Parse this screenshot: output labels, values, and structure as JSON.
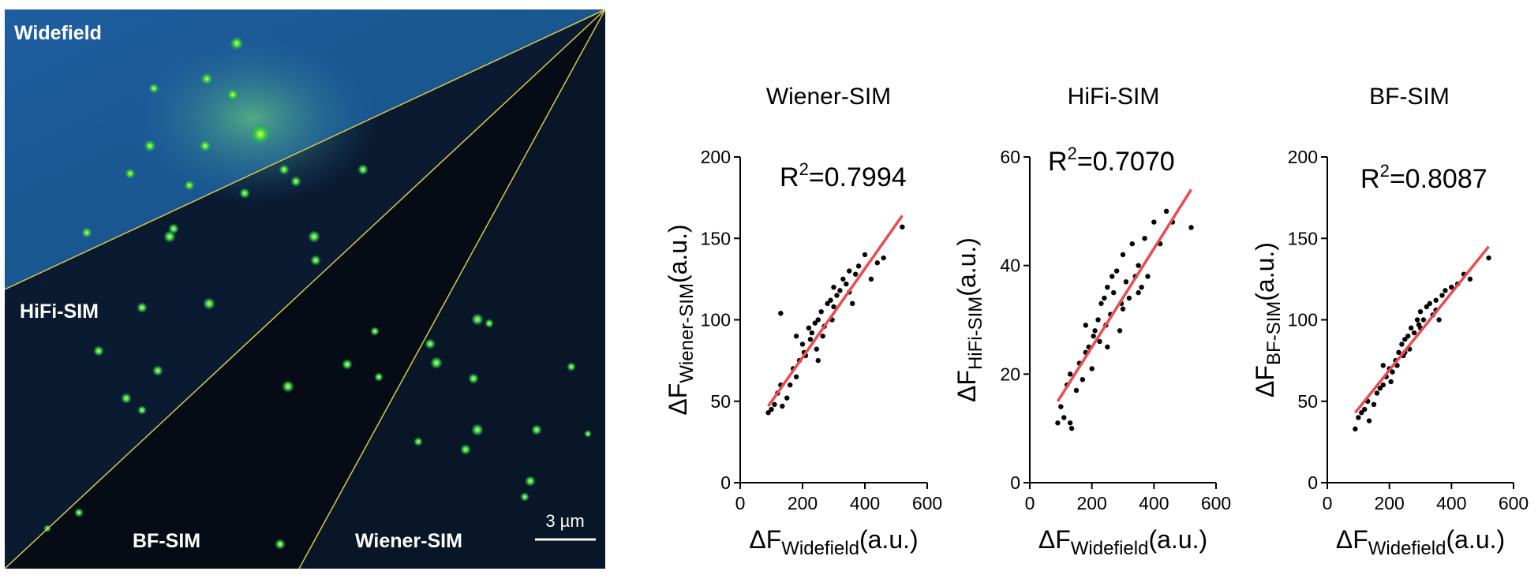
{
  "image_panel": {
    "labels": [
      "Widefield",
      "HiFi-SIM",
      "BF-SIM",
      "Wiener-SIM"
    ],
    "scale_bar": "3 µm"
  },
  "chart_data": [
    {
      "type": "scatter",
      "title": "Wiener-SIM",
      "annotation": {
        "base": "R",
        "sup": "2",
        "text": "=0.7994"
      },
      "ylabel": {
        "main": "ΔF",
        "sub": "Wiener-SIM",
        "unit": "(a.u.)"
      },
      "xlabel": {
        "main": "ΔF",
        "sub": "Widefield",
        "unit": "(a.u.)"
      },
      "x": [
        90,
        100,
        110,
        120,
        130,
        135,
        150,
        160,
        170,
        180,
        190,
        200,
        205,
        210,
        220,
        225,
        230,
        240,
        245,
        250,
        260,
        265,
        270,
        280,
        290,
        295,
        300,
        310,
        320,
        330,
        340,
        350,
        360,
        370,
        380,
        400,
        420,
        440,
        460,
        520,
        130,
        250,
        300,
        180,
        350
      ],
      "y": [
        43,
        45,
        48,
        55,
        104,
        47,
        52,
        60,
        70,
        65,
        75,
        85,
        80,
        78,
        95,
        88,
        92,
        98,
        82,
        100,
        105,
        90,
        96,
        110,
        112,
        100,
        120,
        115,
        118,
        125,
        122,
        130,
        110,
        128,
        133,
        140,
        125,
        135,
        138,
        157,
        60,
        75,
        108,
        90,
        117
      ],
      "fit": {
        "x": [
          90,
          520
        ],
        "y": [
          47,
          164
        ]
      },
      "point_color": "#000000",
      "fit_color": "#ec4a4f",
      "xlim": [
        0,
        600
      ],
      "xticks": [
        0,
        200,
        400,
        600
      ],
      "ylim": [
        0,
        200
      ],
      "yticks": [
        0,
        50,
        100,
        150,
        200
      ]
    },
    {
      "type": "scatter",
      "title": "HiFi-SIM",
      "annotation": {
        "base": "R",
        "sup": "2",
        "text": "=0.7070"
      },
      "ylabel": {
        "main": "ΔF",
        "sub": "HiFi-SIM",
        "unit": "(a.u.)"
      },
      "xlabel": {
        "main": "ΔF",
        "sub": "Widefield",
        "unit": "(a.u.)"
      },
      "x": [
        90,
        100,
        110,
        120,
        130,
        135,
        150,
        160,
        170,
        180,
        190,
        200,
        205,
        210,
        220,
        225,
        230,
        240,
        245,
        250,
        260,
        265,
        270,
        280,
        290,
        295,
        300,
        310,
        320,
        330,
        340,
        350,
        360,
        370,
        380,
        400,
        420,
        440,
        460,
        520,
        130,
        250,
        300,
        180,
        350
      ],
      "y": [
        11,
        14,
        12,
        18,
        20,
        10,
        17,
        22,
        19,
        24,
        25,
        21,
        27,
        28,
        30,
        26,
        33,
        34,
        29,
        36,
        31,
        38,
        35,
        39,
        28,
        33,
        42,
        37,
        34,
        44,
        38,
        40,
        36,
        45,
        38,
        48,
        44,
        50,
        48,
        47,
        11,
        25,
        32,
        29,
        35
      ],
      "fit": {
        "x": [
          90,
          520
        ],
        "y": [
          15,
          54
        ]
      },
      "point_color": "#000000",
      "fit_color": "#ec4a4f",
      "xlim": [
        0,
        600
      ],
      "xticks": [
        0,
        200,
        400,
        600
      ],
      "ylim": [
        0,
        60
      ],
      "yticks": [
        0,
        20,
        40,
        60
      ]
    },
    {
      "type": "scatter",
      "title": "BF-SIM",
      "annotation": {
        "base": "R",
        "sup": "2",
        "text": "=0.8087"
      },
      "ylabel": {
        "main": "ΔF",
        "sub": "BF-SIM",
        "unit": "(a.u.)"
      },
      "xlabel": {
        "main": "ΔF",
        "sub": "Widefield",
        "unit": "(a.u.)"
      },
      "x": [
        90,
        100,
        110,
        120,
        130,
        135,
        150,
        160,
        170,
        180,
        190,
        200,
        205,
        210,
        220,
        225,
        230,
        240,
        245,
        250,
        260,
        265,
        270,
        280,
        290,
        295,
        300,
        310,
        320,
        330,
        340,
        350,
        360,
        370,
        380,
        400,
        420,
        440,
        460,
        520,
        130,
        250,
        300,
        180,
        350
      ],
      "y": [
        33,
        40,
        43,
        45,
        50,
        38,
        48,
        55,
        58,
        60,
        65,
        70,
        62,
        68,
        75,
        72,
        80,
        85,
        78,
        88,
        90,
        82,
        95,
        92,
        100,
        97,
        105,
        100,
        108,
        110,
        103,
        112,
        100,
        115,
        118,
        120,
        122,
        128,
        125,
        138,
        50,
        80,
        95,
        72,
        106
      ],
      "fit": {
        "x": [
          90,
          520
        ],
        "y": [
          43,
          145
        ]
      },
      "point_color": "#000000",
      "fit_color": "#ec4a4f",
      "xlim": [
        0,
        600
      ],
      "xticks": [
        0,
        200,
        400,
        600
      ],
      "ylim": [
        0,
        200
      ],
      "yticks": [
        0,
        50,
        100,
        150,
        200
      ]
    }
  ]
}
